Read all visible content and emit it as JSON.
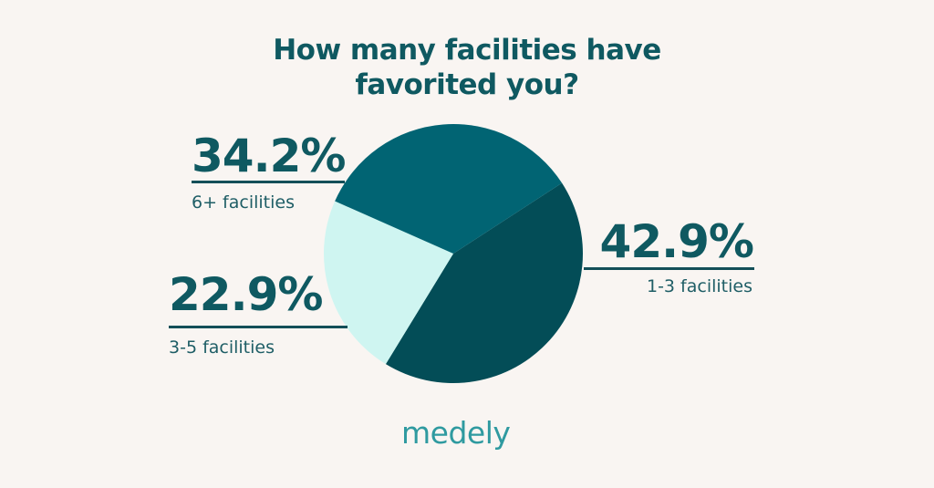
{
  "chart_data": {
    "type": "pie",
    "title": "How many facilities have favorited you?",
    "slices": [
      {
        "label": "1-3 facilities",
        "value": 42.9,
        "value_label": "42.9%",
        "color": "#034d57"
      },
      {
        "label": "3-5 facilities",
        "value": 22.9,
        "value_label": "22.9%",
        "color": "#cff5f1"
      },
      {
        "label": "6+ facilities",
        "value": 34.2,
        "value_label": "34.2%",
        "color": "#016473"
      }
    ]
  },
  "brand": {
    "logo_text": "medely"
  },
  "colors": {
    "background": "#f9f5f2",
    "text": "#0f5961",
    "logo": "#2f9aa0"
  }
}
